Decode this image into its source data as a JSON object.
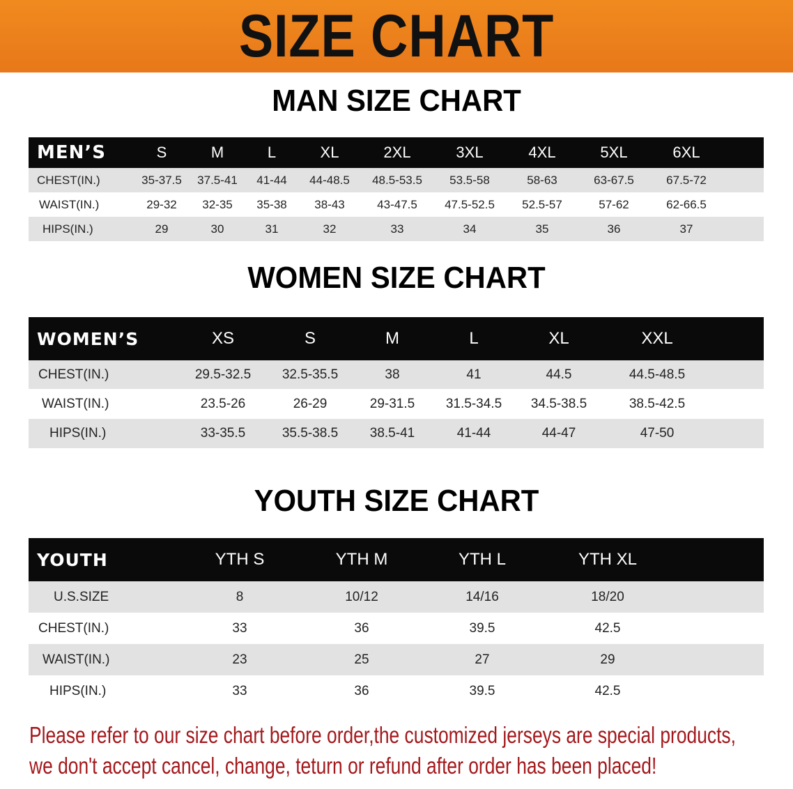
{
  "banner": {
    "title": "SIZE CHART",
    "color": "#ec801c"
  },
  "men": {
    "title": "MAN SIZE CHART",
    "header": [
      "MEN’S",
      "S",
      "M",
      "L",
      "XL",
      "2XL",
      "3XL",
      "4XL",
      "5XL",
      "6XL"
    ],
    "rows": [
      [
        "CHEST(IN.)",
        "35-37.5",
        "37.5-41",
        "41-44",
        "44-48.5",
        "48.5-53.5",
        "53.5-58",
        "58-63",
        "63-67.5",
        "67.5-72"
      ],
      [
        "WAIST(IN.)",
        "29-32",
        "32-35",
        "35-38",
        "38-43",
        "43-47.5",
        "47.5-52.5",
        "52.5-57",
        "57-62",
        "62-66.5"
      ],
      [
        "HIPS(IN.)",
        "29",
        "30",
        "31",
        "32",
        "33",
        "34",
        "35",
        "36",
        "37"
      ]
    ]
  },
  "women": {
    "title": "WOMEN SIZE CHART",
    "header": [
      "WOMEN’S",
      "XS",
      "S",
      "M",
      "L",
      "XL",
      "XXL"
    ],
    "rows": [
      [
        "CHEST(IN.)",
        "29.5-32.5",
        "32.5-35.5",
        "38",
        "41",
        "44.5",
        "44.5-48.5"
      ],
      [
        "WAIST(IN.)",
        "23.5-26",
        "26-29",
        "29-31.5",
        "31.5-34.5",
        "34.5-38.5",
        "38.5-42.5"
      ],
      [
        "HIPS(IN.)",
        "33-35.5",
        "35.5-38.5",
        "38.5-41",
        "41-44",
        "44-47",
        "47-50"
      ]
    ]
  },
  "youth": {
    "title": "YOUTH SIZE CHART",
    "header": [
      "YOUTH",
      "YTH S",
      "YTH M",
      "YTH L",
      "YTH XL"
    ],
    "rows": [
      [
        "U.S.SIZE",
        "8",
        "10/12",
        "14/16",
        "18/20"
      ],
      [
        "CHEST(IN.)",
        "33",
        "36",
        "39.5",
        "42.5"
      ],
      [
        "WAIST(IN.)",
        "23",
        "25",
        "27",
        "29"
      ],
      [
        "HIPS(IN.)",
        "33",
        "36",
        "39.5",
        "42.5"
      ]
    ]
  },
  "note": {
    "line1": "Please refer to our size chart before order,the customized jerseys are special products,",
    "line2": "we don't accept cancel, change, teturn or refund after order has been placed!",
    "color": "#a3181c"
  }
}
